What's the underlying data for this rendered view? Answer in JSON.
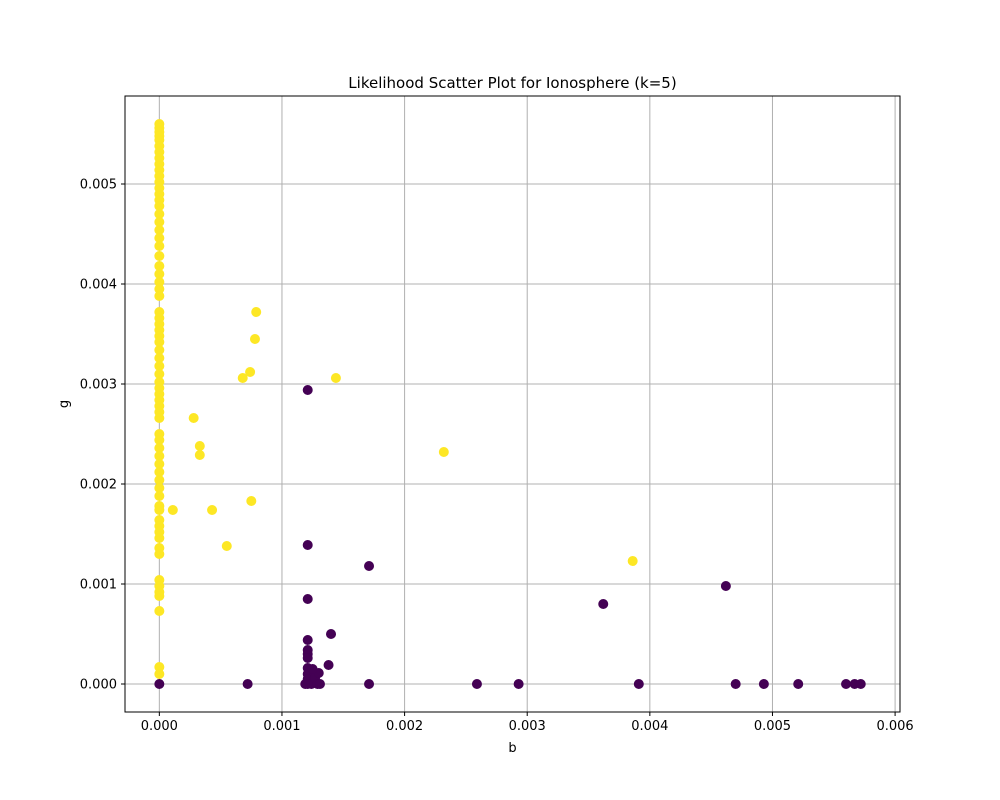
{
  "chart_data": {
    "type": "scatter",
    "title": "Likelihood Scatter Plot for Ionosphere (k=5)",
    "xlabel": "b",
    "ylabel": "g",
    "xlim": [
      -0.00028,
      0.00604
    ],
    "ylim": [
      -0.00028,
      0.00588
    ],
    "x_ticks": [
      "0.000",
      "0.001",
      "0.002",
      "0.003",
      "0.004",
      "0.005",
      "0.006"
    ],
    "y_ticks": [
      "0.000",
      "0.001",
      "0.002",
      "0.003",
      "0.004",
      "0.005"
    ],
    "grid": true,
    "legend": "none",
    "colors": {
      "g": "#fde725",
      "b": "#440154"
    },
    "series": [
      {
        "class": "g",
        "points": [
          [
            0.0,
            0.0056
          ],
          [
            0.0,
            0.00556
          ],
          [
            0.0,
            0.00552
          ],
          [
            0.0,
            0.00548
          ],
          [
            0.0,
            0.00544
          ],
          [
            0.0,
            0.00538
          ],
          [
            0.0,
            0.00532
          ],
          [
            0.0,
            0.00526
          ],
          [
            0.0,
            0.0052
          ],
          [
            0.0,
            0.00514
          ],
          [
            0.0,
            0.00508
          ],
          [
            0.0,
            0.00502
          ],
          [
            0.0,
            0.00496
          ],
          [
            0.0,
            0.0049
          ],
          [
            0.0,
            0.00484
          ],
          [
            0.0,
            0.00478
          ],
          [
            0.0,
            0.0047
          ],
          [
            0.0,
            0.00462
          ],
          [
            0.0,
            0.00454
          ],
          [
            0.0,
            0.00446
          ],
          [
            0.0,
            0.00438
          ],
          [
            0.0,
            0.00428
          ],
          [
            0.0,
            0.00418
          ],
          [
            0.0,
            0.0041
          ],
          [
            0.0,
            0.00402
          ],
          [
            0.0,
            0.00395
          ],
          [
            0.0,
            0.00388
          ],
          [
            0.0,
            0.00372
          ],
          [
            0.0,
            0.00366
          ],
          [
            0.0,
            0.0036
          ],
          [
            0.0,
            0.00354
          ],
          [
            0.0,
            0.00348
          ],
          [
            0.0,
            0.00342
          ],
          [
            0.0,
            0.00334
          ],
          [
            0.0,
            0.00326
          ],
          [
            0.0,
            0.00318
          ],
          [
            0.0,
            0.0031
          ],
          [
            0.0,
            0.00302
          ],
          [
            0.0,
            0.00296
          ],
          [
            0.0,
            0.0029
          ],
          [
            0.0,
            0.00284
          ],
          [
            0.0,
            0.00278
          ],
          [
            0.0,
            0.00272
          ],
          [
            0.0,
            0.00266
          ],
          [
            0.0,
            0.0025
          ],
          [
            0.0,
            0.00244
          ],
          [
            0.0,
            0.00236
          ],
          [
            0.0,
            0.00228
          ],
          [
            0.0,
            0.0022
          ],
          [
            0.0,
            0.00212
          ],
          [
            0.0,
            0.00204
          ],
          [
            0.0,
            0.00196
          ],
          [
            0.0,
            0.00188
          ],
          [
            0.0,
            0.00178
          ],
          [
            0.0,
            0.00174
          ],
          [
            0.0,
            0.00164
          ],
          [
            0.0,
            0.00158
          ],
          [
            0.0,
            0.00152
          ],
          [
            0.0,
            0.00146
          ],
          [
            0.0,
            0.00136
          ],
          [
            0.0,
            0.0013
          ],
          [
            0.0,
            0.00104
          ],
          [
            0.0,
            0.00098
          ],
          [
            0.0,
            0.00092
          ],
          [
            0.0,
            0.00088
          ],
          [
            0.0,
            0.00073
          ],
          [
            0.0,
            0.00017
          ],
          [
            0.0,
            0.0001
          ],
          [
            0.00011,
            0.00174
          ],
          [
            0.00028,
            0.00266
          ],
          [
            0.00033,
            0.00238
          ],
          [
            0.00033,
            0.00229
          ],
          [
            0.00043,
            0.00174
          ],
          [
            0.00055,
            0.00138
          ],
          [
            0.00068,
            0.00306
          ],
          [
            0.00074,
            0.00312
          ],
          [
            0.00075,
            0.00183
          ],
          [
            0.00078,
            0.00345
          ],
          [
            0.00079,
            0.00372
          ],
          [
            0.00144,
            0.00306
          ],
          [
            0.00232,
            0.00232
          ],
          [
            0.00386,
            0.00123
          ]
        ]
      },
      {
        "class": "b",
        "points": [
          [
            0.0,
            0.0
          ],
          [
            0.00072,
            0.0
          ],
          [
            0.00121,
            0.00294
          ],
          [
            0.00121,
            0.00139
          ],
          [
            0.00121,
            0.00085
          ],
          [
            0.00121,
            0.00044
          ],
          [
            0.00121,
            0.00034
          ],
          [
            0.00121,
            0.0003
          ],
          [
            0.00121,
            0.00026
          ],
          [
            0.00121,
            0.00016
          ],
          [
            0.00121,
            0.0001
          ],
          [
            0.00121,
            5e-05
          ],
          [
            0.00121,
            0.0
          ],
          [
            0.00119,
            0.0
          ],
          [
            0.00124,
            0.0
          ],
          [
            0.00126,
            0.00012
          ],
          [
            0.00127,
            6e-05
          ],
          [
            0.00129,
            0.0
          ],
          [
            0.0013,
            0.00011
          ],
          [
            0.00131,
            0.0
          ],
          [
            0.00125,
            0.00015
          ],
          [
            0.00138,
            0.00019
          ],
          [
            0.0014,
            0.0005
          ],
          [
            0.00171,
            0.00118
          ],
          [
            0.00171,
            0.0
          ],
          [
            0.00259,
            0.0
          ],
          [
            0.00293,
            0.0
          ],
          [
            0.00362,
            0.0008
          ],
          [
            0.00391,
            0.0
          ],
          [
            0.00462,
            0.00098
          ],
          [
            0.0047,
            0.0
          ],
          [
            0.00493,
            0.0
          ],
          [
            0.00521,
            0.0
          ],
          [
            0.0056,
            0.0
          ],
          [
            0.00567,
            0.0
          ],
          [
            0.00572,
            0.0
          ]
        ]
      }
    ]
  }
}
